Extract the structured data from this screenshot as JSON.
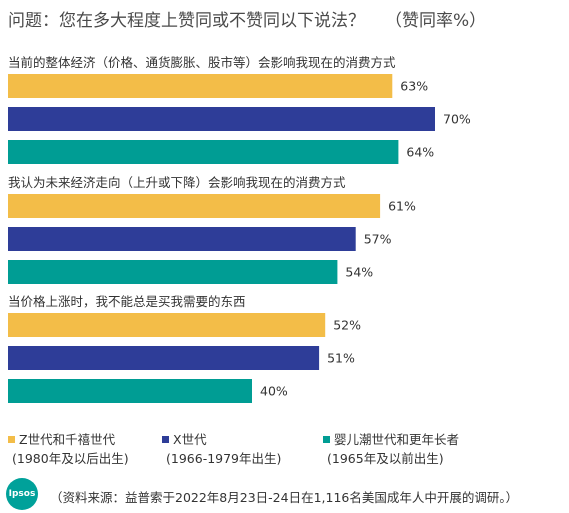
{
  "title": "问题：您在多大程度上赞同或不赞同以下说法？",
  "title_note": "（赞同率%）",
  "chart_data": {
    "type": "bar",
    "orientation": "horizontal",
    "categories": [
      "当前的整体经济（价格、通货膨胀、股市等）会影响我现在的消费方式",
      "我认为未来经济走向（上升或下降）会影响我现在的消费方式",
      "当价格上涨时，我不能总是买我需要的东西"
    ],
    "series": [
      {
        "name": "Z世代和千禧世代",
        "sub": "(1980年及以后出生)",
        "color": "#f3bd48",
        "values": [
          63,
          61,
          52
        ],
        "labels": [
          "63%",
          "61%",
          "52%"
        ]
      },
      {
        "name": "X世代",
        "sub": "(1966-1979年出生)",
        "color": "#2e3d98",
        "values": [
          70,
          57,
          51
        ],
        "labels": [
          "70%",
          "57%",
          "51%"
        ]
      },
      {
        "name": "婴儿潮世代和更年长者",
        "sub": "(1965年及以前出生)",
        "color": "#009d94",
        "values": [
          64,
          54,
          40
        ],
        "labels": [
          "64%",
          "54%",
          "40%"
        ]
      }
    ],
    "xlim": [
      0,
      100
    ],
    "grid": false,
    "legend_position": "bottom"
  },
  "source": "（资料来源：益普索于2022年8月23日-24日在1,116名美国成年人中开展的调研。）",
  "logo_text": "Ipsos"
}
